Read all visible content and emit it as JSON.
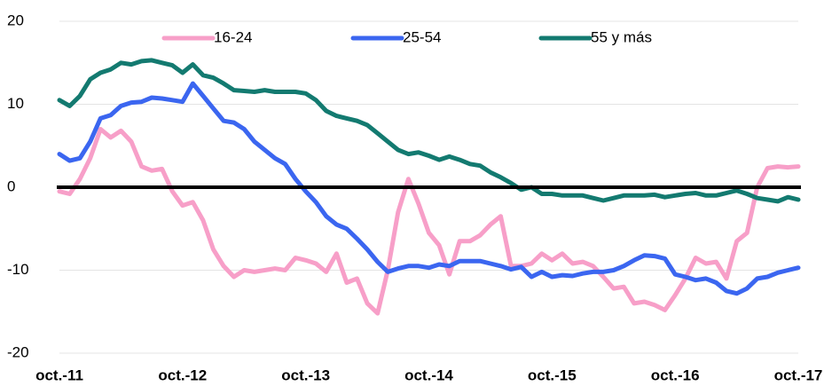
{
  "chart_data": {
    "type": "line",
    "categories": [
      "oct.-11",
      null,
      null,
      null,
      null,
      null,
      null,
      null,
      null,
      null,
      null,
      null,
      "oct.-12",
      null,
      null,
      null,
      null,
      null,
      null,
      null,
      null,
      null,
      null,
      null,
      "oct.-13",
      null,
      null,
      null,
      null,
      null,
      null,
      null,
      null,
      null,
      null,
      null,
      "oct.-14",
      null,
      null,
      null,
      null,
      null,
      null,
      null,
      null,
      null,
      null,
      null,
      "oct.-15",
      null,
      null,
      null,
      null,
      null,
      null,
      null,
      null,
      null,
      null,
      null,
      "oct.-16",
      null,
      null,
      null,
      null,
      null,
      null,
      null,
      null,
      null,
      null,
      null,
      "oct.-17"
    ],
    "series": [
      {
        "name": "16-24",
        "color": "#f79fc8",
        "values": [
          -0.5,
          -0.8,
          1,
          3.5,
          7,
          6,
          6.8,
          5.5,
          2.5,
          2,
          2.2,
          -0.5,
          -2.2,
          -1.8,
          -4,
          -7.5,
          -9.5,
          -10.8,
          -10,
          -10.2,
          -10,
          -9.8,
          -10,
          -8.5,
          -8.8,
          -9.2,
          -10.2,
          -8,
          -11.5,
          -11,
          -14,
          -15.2,
          -10,
          -3,
          1,
          -2,
          -5.5,
          -7,
          -10.5,
          -6.5,
          -6.5,
          -5.8,
          -4.5,
          -3.5,
          -9.5,
          -9.5,
          -9.2,
          -8,
          -8.8,
          -8,
          -9.2,
          -9,
          -9.5,
          -10.8,
          -12.2,
          -12,
          -14,
          -13.8,
          -14.2,
          -14.8,
          -13,
          -11,
          -8.5,
          -9.2,
          -9,
          -11,
          -6.5,
          -5.5,
          0,
          2.3,
          2.5,
          2.4,
          2.5
        ]
      },
      {
        "name": "25-54",
        "color": "#3b66f0",
        "values": [
          4,
          3.2,
          3.5,
          5.5,
          8.3,
          8.7,
          9.8,
          10.2,
          10.3,
          10.8,
          10.7,
          10.5,
          10.3,
          12.5,
          11,
          9.5,
          8,
          7.8,
          7,
          5.5,
          4.5,
          3.5,
          2.8,
          1,
          -0.5,
          -1.8,
          -3.5,
          -4.5,
          -5,
          -6.2,
          -7.5,
          -9,
          -10.2,
          -9.8,
          -9.5,
          -9.5,
          -9.7,
          -9.3,
          -9.5,
          -8.9,
          -8.9,
          -8.9,
          -9.2,
          -9.5,
          -9.9,
          -9.6,
          -10.8,
          -10.2,
          -10.8,
          -10.6,
          -10.7,
          -10.4,
          -10.2,
          -10.2,
          -10,
          -9.5,
          -8.8,
          -8.2,
          -8.3,
          -8.6,
          -10.5,
          -10.8,
          -11.2,
          -11,
          -11.5,
          -12.5,
          -12.8,
          -12.2,
          -11,
          -10.8,
          -10.3,
          -10,
          -9.7
        ]
      },
      {
        "name": "55 y más",
        "color": "#137a70",
        "values": [
          10.5,
          9.8,
          11,
          13,
          13.8,
          14.2,
          15,
          14.8,
          15.2,
          15.3,
          15,
          14.7,
          13.8,
          14.8,
          13.5,
          13.2,
          12.5,
          11.7,
          11.6,
          11.5,
          11.7,
          11.5,
          11.5,
          11.5,
          11.3,
          10.5,
          9.2,
          8.6,
          8.3,
          8,
          7.5,
          6.5,
          5.5,
          4.5,
          4,
          4.2,
          3.8,
          3.3,
          3.7,
          3.3,
          2.8,
          2.6,
          1.8,
          1.2,
          0.5,
          -0.3,
          0,
          -0.8,
          -0.8,
          -1,
          -1,
          -1,
          -1.3,
          -1.6,
          -1.3,
          -1,
          -1,
          -1,
          -0.9,
          -1.2,
          -1,
          -0.8,
          -0.7,
          -1,
          -1,
          -0.7,
          -0.4,
          -0.8,
          -1.3,
          -1.5,
          -1.7,
          -1.2,
          -1.5
        ]
      }
    ],
    "ylim": [
      -20,
      20
    ],
    "yticks": [
      -20,
      -10,
      0,
      10,
      20
    ],
    "grid": true,
    "legend": "top"
  }
}
